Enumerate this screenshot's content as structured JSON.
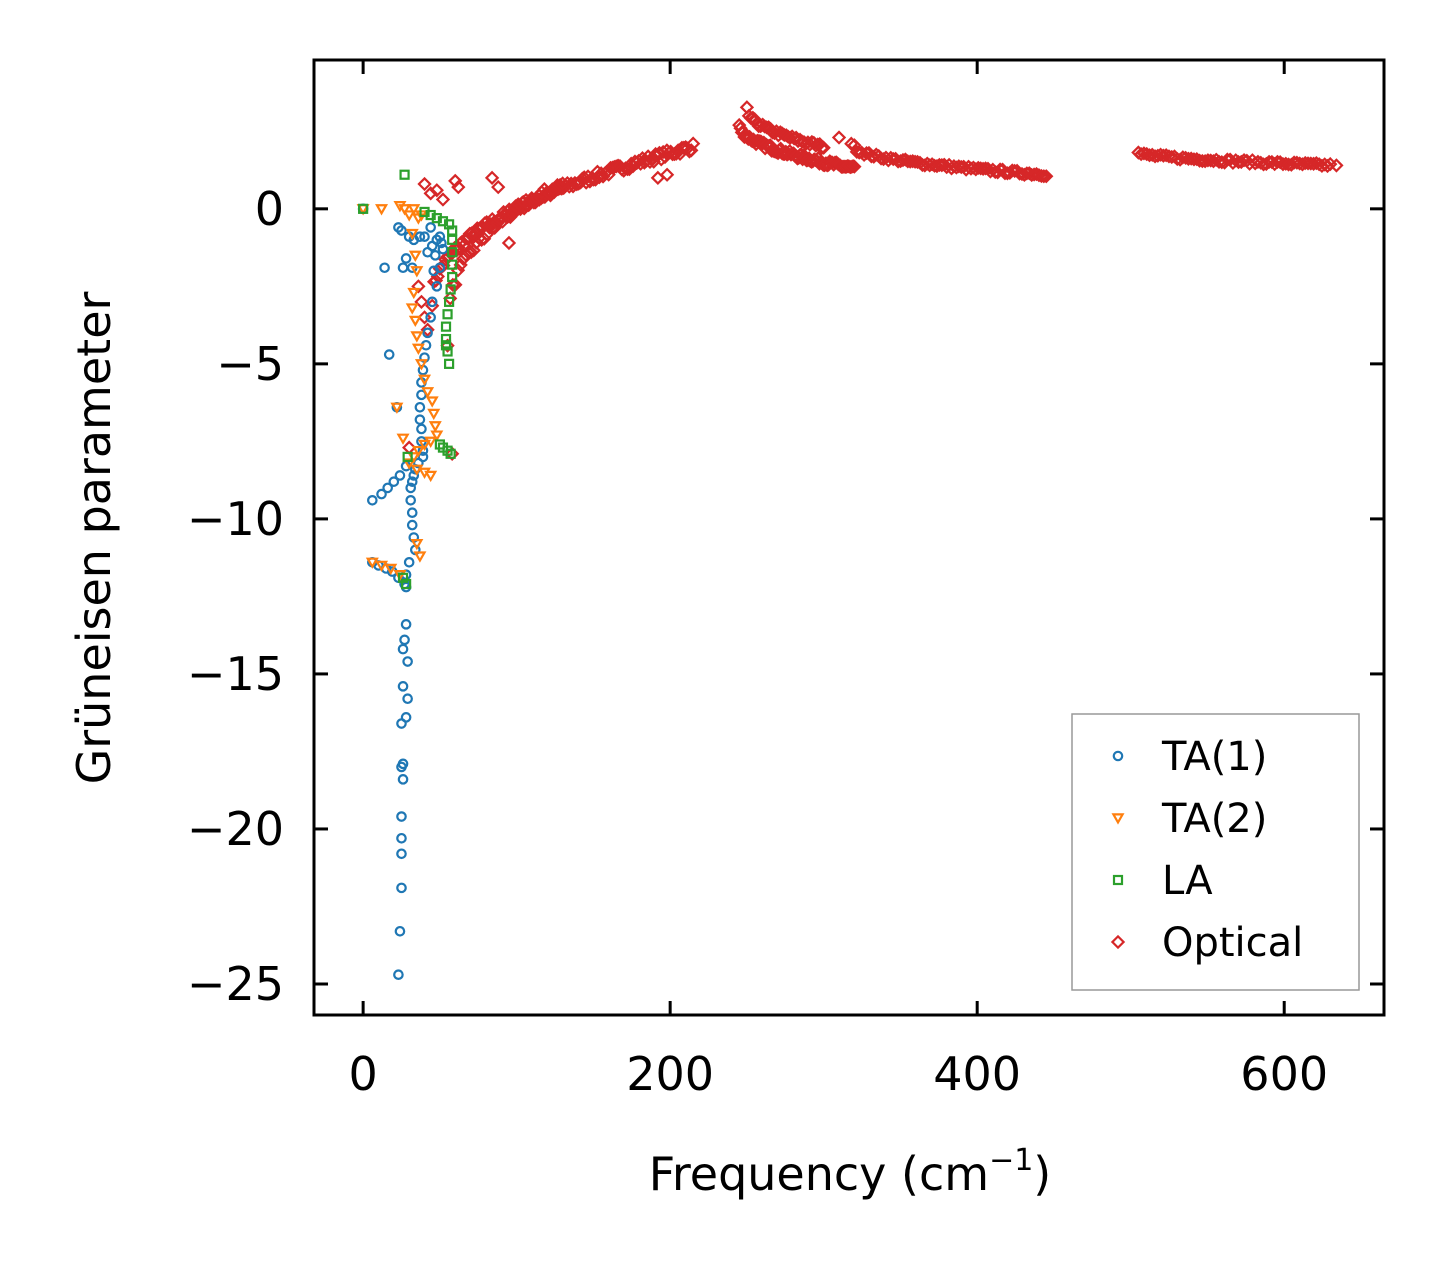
{
  "chart_data": {
    "type": "scatter",
    "title": "",
    "xlabel": "Frequency (cm",
    "xlabel_sup": "−1",
    "xlabel_close": ")",
    "ylabel": "Grüneisen parameter",
    "xlim": [
      -32,
      665
    ],
    "ylim": [
      -26.0,
      4.8
    ],
    "xticks": [
      0,
      200,
      400,
      600
    ],
    "xtick_labels": [
      "0",
      "200",
      "400",
      "600"
    ],
    "yticks": [
      0,
      -5,
      -10,
      -15,
      -20,
      -25
    ],
    "ytick_labels": [
      "0",
      "−5",
      "−10",
      "−15",
      "−20",
      "−25"
    ],
    "legend_position": "lower-right",
    "series": [
      {
        "name": "TA(1)",
        "color": "#1f77b4",
        "marker": "circle",
        "points": [
          [
            0,
            0
          ],
          [
            23,
            -0.6
          ],
          [
            25,
            -0.7
          ],
          [
            28,
            -1.6
          ],
          [
            30,
            -0.9
          ],
          [
            33,
            -1.0
          ],
          [
            37,
            -0.9
          ],
          [
            40,
            -0.9
          ],
          [
            42,
            -1.4
          ],
          [
            44,
            -0.6
          ],
          [
            45,
            -1.2
          ],
          [
            46,
            -2.0
          ],
          [
            47,
            -1.5
          ],
          [
            48,
            -2.5
          ],
          [
            48,
            -1.0
          ],
          [
            50,
            -0.9
          ],
          [
            50,
            -1.9
          ],
          [
            51,
            -1.1
          ],
          [
            52,
            -1.3
          ],
          [
            45,
            -3.0
          ],
          [
            44,
            -3.5
          ],
          [
            42,
            -4.0
          ],
          [
            41,
            -4.4
          ],
          [
            40,
            -4.8
          ],
          [
            39,
            -5.2
          ],
          [
            38,
            -5.6
          ],
          [
            38,
            -6.0
          ],
          [
            37,
            -6.4
          ],
          [
            37,
            -6.8
          ],
          [
            38,
            -7.1
          ],
          [
            38,
            -7.5
          ],
          [
            39,
            -7.8
          ],
          [
            39,
            -8.0
          ],
          [
            36,
            -8.2
          ],
          [
            34,
            -8.4
          ],
          [
            33,
            -8.6
          ],
          [
            32,
            -8.8
          ],
          [
            31,
            -9.0
          ],
          [
            31,
            -9.4
          ],
          [
            32,
            -9.8
          ],
          [
            32,
            -10.2
          ],
          [
            33,
            -10.6
          ],
          [
            34,
            -11.0
          ],
          [
            30,
            -11.4
          ],
          [
            28,
            -11.8
          ],
          [
            27,
            -12.1
          ],
          [
            28,
            -12.2
          ],
          [
            26,
            -1.9
          ],
          [
            32,
            -1.9
          ],
          [
            14,
            -1.9
          ],
          [
            17,
            -4.7
          ],
          [
            22,
            -6.4
          ],
          [
            6,
            -9.4
          ],
          [
            12,
            -9.2
          ],
          [
            16,
            -9.0
          ],
          [
            20,
            -8.8
          ],
          [
            24,
            -8.6
          ],
          [
            28,
            -8.3
          ],
          [
            6,
            -11.4
          ],
          [
            10,
            -11.5
          ],
          [
            15,
            -11.6
          ],
          [
            19,
            -11.7
          ],
          [
            23,
            -11.9
          ],
          [
            28,
            -13.4
          ],
          [
            27,
            -13.9
          ],
          [
            26,
            -14.2
          ],
          [
            29,
            -14.6
          ],
          [
            26,
            -15.4
          ],
          [
            29,
            -15.8
          ],
          [
            28,
            -16.4
          ],
          [
            25,
            -16.6
          ],
          [
            26,
            -17.9
          ],
          [
            25,
            -18.0
          ],
          [
            26,
            -18.4
          ],
          [
            25,
            -19.6
          ],
          [
            25,
            -20.3
          ],
          [
            25,
            -20.8
          ],
          [
            25,
            -21.9
          ],
          [
            24,
            -23.3
          ],
          [
            23,
            -24.7
          ]
        ]
      },
      {
        "name": "TA(2)",
        "color": "#ff7f0e",
        "marker": "triangle-down",
        "points": [
          [
            0,
            0
          ],
          [
            12,
            0
          ],
          [
            24,
            0.1
          ],
          [
            27,
            0
          ],
          [
            30,
            -0.2
          ],
          [
            33,
            0
          ],
          [
            36,
            -0.3
          ],
          [
            38,
            -0.2
          ],
          [
            32,
            -0.8
          ],
          [
            34,
            -1.5
          ],
          [
            35,
            -2.0
          ],
          [
            33,
            -2.7
          ],
          [
            32,
            -3.2
          ],
          [
            34,
            -3.6
          ],
          [
            35,
            -4.1
          ],
          [
            36,
            -4.5
          ],
          [
            38,
            -5.0
          ],
          [
            40,
            -5.5
          ],
          [
            42,
            -5.9
          ],
          [
            45,
            -6.2
          ],
          [
            46,
            -6.6
          ],
          [
            47,
            -7.0
          ],
          [
            48,
            -7.3
          ],
          [
            44,
            -7.5
          ],
          [
            40,
            -7.6
          ],
          [
            36,
            -7.8
          ],
          [
            33,
            -8.0
          ],
          [
            30,
            -8.2
          ],
          [
            35,
            -8.4
          ],
          [
            40,
            -8.5
          ],
          [
            44,
            -8.6
          ],
          [
            26,
            -7.4
          ],
          [
            22,
            -6.4
          ],
          [
            6,
            -11.4
          ],
          [
            12,
            -11.5
          ],
          [
            18,
            -11.6
          ],
          [
            24,
            -11.8
          ],
          [
            35,
            -10.8
          ],
          [
            37,
            -11.2
          ]
        ]
      },
      {
        "name": "LA",
        "color": "#2ca02c",
        "marker": "square",
        "points": [
          [
            0,
            0
          ],
          [
            27,
            1.1
          ],
          [
            40,
            -0.1
          ],
          [
            44,
            -0.2
          ],
          [
            48,
            -0.3
          ],
          [
            52,
            -0.4
          ],
          [
            56,
            -0.5
          ],
          [
            58,
            -0.7
          ],
          [
            58,
            -1.0
          ],
          [
            58,
            -1.4
          ],
          [
            58,
            -1.8
          ],
          [
            58,
            -2.2
          ],
          [
            57,
            -2.6
          ],
          [
            56,
            -3.0
          ],
          [
            55,
            -3.4
          ],
          [
            54,
            -3.8
          ],
          [
            54,
            -4.2
          ],
          [
            55,
            -4.6
          ],
          [
            56,
            -5.0
          ],
          [
            54,
            -4.4
          ],
          [
            50,
            -7.6
          ],
          [
            52,
            -7.7
          ],
          [
            55,
            -7.8
          ],
          [
            57,
            -7.9
          ],
          [
            29,
            -8.0
          ],
          [
            26,
            -11.9
          ],
          [
            28,
            -12.1
          ]
        ]
      },
      {
        "name": "Optical",
        "color": "#d62728",
        "marker": "diamond",
        "segments": [
          {
            "x": [
              45,
              215
            ],
            "y": [
              -3.0,
              2.0
            ],
            "curve": 0.45,
            "count": 140,
            "spread": 0.25
          },
          {
            "x": [
              55,
              130
            ],
            "y": [
              -4.3,
              0.8
            ],
            "curve": 0.35,
            "count": 45,
            "spread": 0.3
          },
          {
            "x": [
              245,
              320
            ],
            "y": [
              2.7,
              1.3
            ],
            "curve": 0.5,
            "count": 90,
            "spread": 0.18
          },
          {
            "x": [
              250,
              300
            ],
            "y": [
              3.2,
              2.0
            ],
            "curve": 0.5,
            "count": 40,
            "spread": 0.15
          },
          {
            "x": [
              320,
              445
            ],
            "y": [
              2.0,
              1.1
            ],
            "curve": 0.5,
            "count": 80,
            "spread": 0.12
          },
          {
            "x": [
              505,
              630
            ],
            "y": [
              1.8,
              1.4
            ],
            "curve": 0.6,
            "count": 70,
            "spread": 0.12
          }
        ],
        "points": [
          [
            30,
            -7.7
          ],
          [
            58,
            -7.9
          ],
          [
            40,
            0.8
          ],
          [
            44,
            0.5
          ],
          [
            48,
            0.6
          ],
          [
            52,
            0.3
          ],
          [
            60,
            0.9
          ],
          [
            62,
            0.7
          ],
          [
            84,
            1.0
          ],
          [
            88,
            0.7
          ],
          [
            95,
            -1.1
          ],
          [
            192,
            1.0
          ],
          [
            198,
            1.1
          ],
          [
            310,
            2.3
          ],
          [
            318,
            2.1
          ],
          [
            634,
            1.4
          ],
          [
            36,
            -2.5
          ],
          [
            38,
            -3.0
          ],
          [
            40,
            -3.5
          ],
          [
            42,
            -3.9
          ]
        ]
      }
    ]
  }
}
